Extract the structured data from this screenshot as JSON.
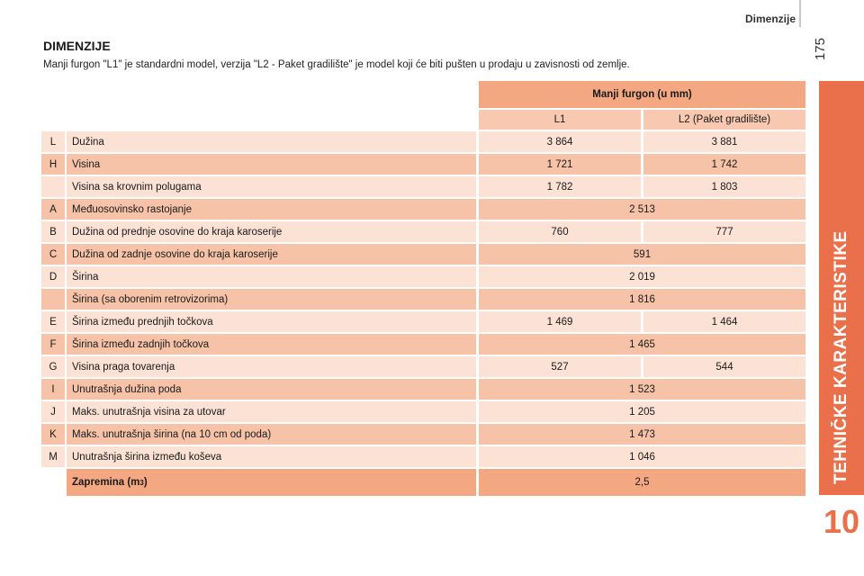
{
  "header": {
    "section_title": "Dimenzije",
    "page_number": "175"
  },
  "side_tab": {
    "label": "TEHNIČKE KARAKTERISTIKE",
    "chapter_number": "10",
    "color": "#e9704a"
  },
  "content": {
    "title": "DIMENZIJE",
    "intro": "Manji furgon \"L1\" je standardni model, verzija \"L2 - Paket gradilište\" je model koji će biti pušten u prodaju u zavisnosti od zemlje."
  },
  "table": {
    "group_header": "Manji furgon (u mm)",
    "columns": [
      "L1",
      "L2 (Paket gradilište)"
    ],
    "rows": [
      {
        "code": "L",
        "label": "Dužina",
        "l1": "3 864",
        "l2": "3 881"
      },
      {
        "code": "H",
        "label": "Visina",
        "l1": "1 721",
        "l2": "1 742"
      },
      {
        "code": "",
        "label": "Visina sa krovnim polugama",
        "l1": "1 782",
        "l2": "1 803"
      },
      {
        "code": "A",
        "label": "Međuosovinsko rastojanje",
        "both": "2 513"
      },
      {
        "code": "B",
        "label": "Dužina od prednje osovine do kraja karoserije",
        "l1": "760",
        "l2": "777"
      },
      {
        "code": "C",
        "label": "Dužina od zadnje osovine do kraja karoserije",
        "both": "591"
      },
      {
        "code": "D",
        "label": "Širina",
        "both": "2 019"
      },
      {
        "code": "",
        "label": "Širina (sa oborenim retrovizorima)",
        "both": "1 816"
      },
      {
        "code": "E",
        "label": "Širina između prednjih točkova",
        "l1": "1 469",
        "l2": "1 464"
      },
      {
        "code": "F",
        "label": "Širina između zadnjih točkova",
        "both": "1 465"
      },
      {
        "code": "G",
        "label": "Visina praga tovarenja",
        "l1": "527",
        "l2": "544"
      },
      {
        "code": "I",
        "label": "Unutrašnja dužina poda",
        "both": "1 523"
      },
      {
        "code": "J",
        "label": "Maks. unutrašnja visina za utovar",
        "both": "1 205"
      },
      {
        "code": "K",
        "label": "Maks. unutrašnja širina (na 10 cm od poda)",
        "both": "1 473"
      },
      {
        "code": "M",
        "label": "Unutrašnja širina između koševa",
        "both": "1 046"
      }
    ],
    "total": {
      "label": "Zapremina (m",
      "label_sup": "3",
      "label_end": ")",
      "value": "2,5"
    }
  }
}
